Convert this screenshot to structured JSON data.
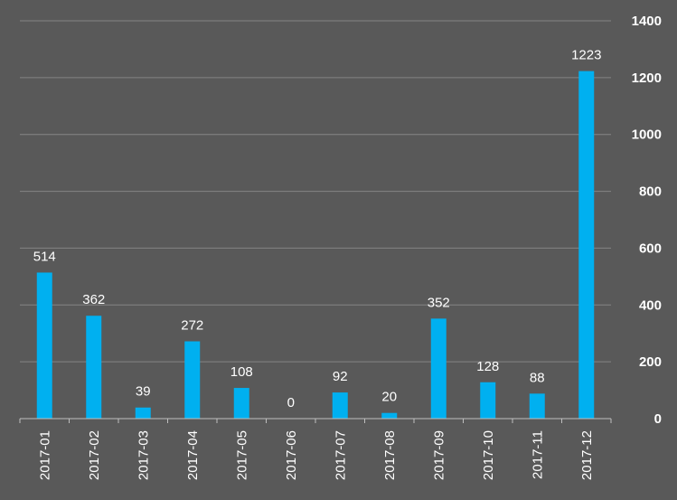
{
  "chart_data": {
    "type": "bar",
    "title": "",
    "xlabel": "",
    "ylabel": "",
    "categories": [
      "2017-01",
      "2017-02",
      "2017-03",
      "2017-04",
      "2017-05",
      "2017-06",
      "2017-07",
      "2017-08",
      "2017-09",
      "2017-10",
      "2017-11",
      "2017-12"
    ],
    "values": [
      514,
      362,
      39,
      272,
      108,
      0,
      92,
      20,
      352,
      128,
      88,
      1223
    ],
    "data_labels": [
      "514",
      "362",
      "39",
      "272",
      "108",
      "0",
      "92",
      "20",
      "352",
      "128",
      "88",
      "1223"
    ],
    "y_ticks": [
      "0",
      "200",
      "400",
      "600",
      "800",
      "1000",
      "1200",
      "1400"
    ],
    "ylim": [
      0,
      1400
    ],
    "y_axis_side": "right",
    "grid": true,
    "legend": "none",
    "colors": {
      "background": "#595959",
      "bar": "#00b0f0",
      "gridline": "#858585",
      "axis": "#bfbfbf",
      "text": "#ffffff"
    }
  }
}
